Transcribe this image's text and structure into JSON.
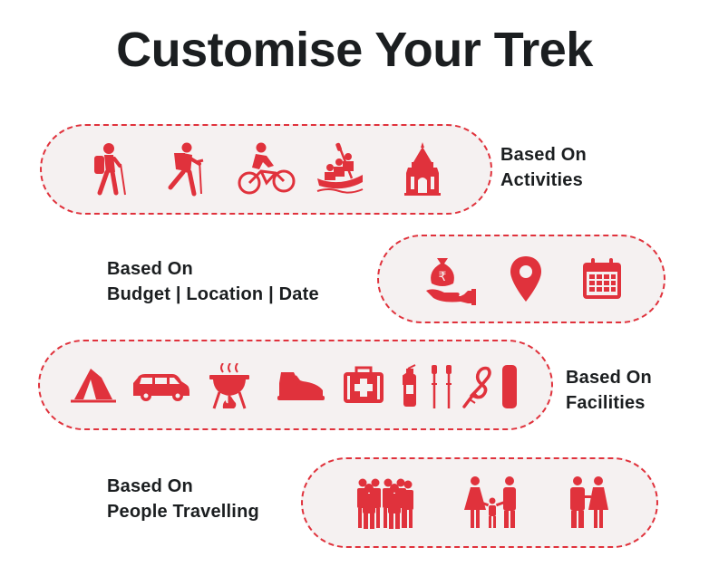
{
  "page": {
    "title": "Customise Your Trek",
    "accent_color": "#e0323c",
    "pill_background": "#f5f1f1"
  },
  "sections": [
    {
      "id": "activities",
      "line1": "Based On",
      "line2": "Activities",
      "icons": [
        "hiker-icon",
        "mountaineer-icon",
        "cyclist-icon",
        "rafting-icon",
        "temple-icon"
      ]
    },
    {
      "id": "budget-location-date",
      "line1": "Based On",
      "line2": "Budget | Location | Date",
      "icons": [
        "money-bag-hand-icon",
        "location-pin-icon",
        "calendar-icon"
      ]
    },
    {
      "id": "facilities",
      "line1": "Based On",
      "line2": "Facilities",
      "icons": [
        "tent-icon",
        "car-icon",
        "barbecue-icon",
        "hiking-shoe-icon",
        "first-aid-kit-icon",
        "fire-extinguisher-icon",
        "trekking-poles-icon",
        "rope-icon",
        "sleeping-bag-icon"
      ]
    },
    {
      "id": "people",
      "line1": "Based On",
      "line2": "People Travelling",
      "icons": [
        "group-icon",
        "family-icon",
        "couple-icon"
      ]
    }
  ]
}
